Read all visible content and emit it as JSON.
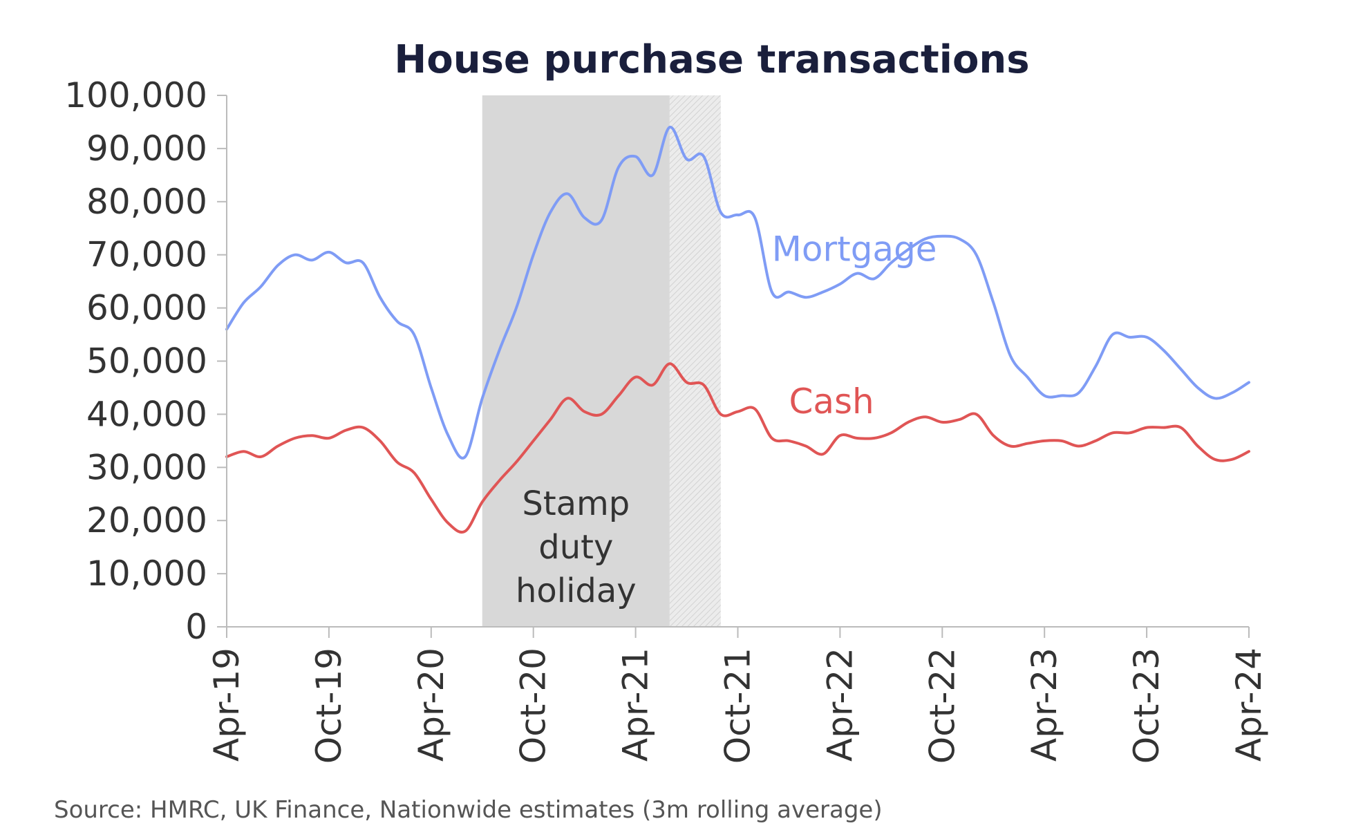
{
  "chart_data": {
    "type": "line",
    "title": "House purchase transactions",
    "source": "Source: HMRC, UK Finance, Nationwide estimates (3m rolling average)",
    "ylim": [
      0,
      100000
    ],
    "yticks": [
      "0",
      "10,000",
      "20,000",
      "30,000",
      "40,000",
      "50,000",
      "60,000",
      "70,000",
      "80,000",
      "90,000",
      "100,000"
    ],
    "ytick_values": [
      0,
      10000,
      20000,
      30000,
      40000,
      50000,
      60000,
      70000,
      80000,
      90000,
      100000
    ],
    "xlim": [
      "2019-04",
      "2024-04"
    ],
    "xticks": [
      "Apr-19",
      "Oct-19",
      "Apr-20",
      "Oct-20",
      "Apr-21",
      "Oct-21",
      "Apr-22",
      "Oct-22",
      "Apr-23",
      "Oct-23",
      "Apr-24"
    ],
    "xtick_dates": [
      "2019-04",
      "2019-10",
      "2020-04",
      "2020-10",
      "2021-04",
      "2021-10",
      "2022-04",
      "2022-10",
      "2023-04",
      "2023-10",
      "2024-04"
    ],
    "grid": false,
    "legend": "none",
    "annotations": {
      "band_label": [
        "Stamp",
        "duty",
        "holiday"
      ],
      "band_main": {
        "start": "2020-07",
        "end": "2021-06"
      },
      "band_taper": {
        "start": "2021-06",
        "end": "2021-09"
      }
    },
    "series": [
      {
        "name": "Mortgage",
        "color": "#7f9cf5",
        "x": [
          "2019-04",
          "2019-05",
          "2019-06",
          "2019-07",
          "2019-08",
          "2019-09",
          "2019-10",
          "2019-11",
          "2019-12",
          "2020-01",
          "2020-02",
          "2020-03",
          "2020-04",
          "2020-05",
          "2020-06",
          "2020-07",
          "2020-08",
          "2020-09",
          "2020-10",
          "2020-11",
          "2020-12",
          "2021-01",
          "2021-02",
          "2021-03",
          "2021-04",
          "2021-05",
          "2021-06",
          "2021-07",
          "2021-08",
          "2021-09",
          "2021-10",
          "2021-11",
          "2021-12",
          "2022-01",
          "2022-02",
          "2022-03",
          "2022-04",
          "2022-05",
          "2022-06",
          "2022-07",
          "2022-08",
          "2022-09",
          "2022-10",
          "2022-11",
          "2022-12",
          "2023-01",
          "2023-02",
          "2023-03",
          "2023-04",
          "2023-05",
          "2023-06",
          "2023-07",
          "2023-08",
          "2023-09",
          "2023-10",
          "2023-11",
          "2023-12",
          "2024-01",
          "2024-02",
          "2024-03",
          "2024-04"
        ],
        "values": [
          56000,
          61000,
          64000,
          68000,
          70000,
          69000,
          70500,
          68500,
          68500,
          62000,
          57500,
          55000,
          45000,
          36000,
          32000,
          43000,
          52000,
          60000,
          70000,
          78000,
          81500,
          77000,
          76500,
          86500,
          88500,
          85000,
          94000,
          88000,
          88500,
          78000,
          77500,
          77000,
          63000,
          63000,
          62000,
          63000,
          64500,
          66500,
          65500,
          68500,
          71000,
          73000,
          73500,
          73000,
          70000,
          61000,
          51000,
          47000,
          43500,
          43500,
          44000,
          49000,
          55000,
          54500,
          54500,
          52000,
          48500,
          45000,
          43000,
          44000,
          46000
        ]
      },
      {
        "name": "Cash",
        "color": "#e05555",
        "x": [
          "2019-04",
          "2019-05",
          "2019-06",
          "2019-07",
          "2019-08",
          "2019-09",
          "2019-10",
          "2019-11",
          "2019-12",
          "2020-01",
          "2020-02",
          "2020-03",
          "2020-04",
          "2020-05",
          "2020-06",
          "2020-07",
          "2020-08",
          "2020-09",
          "2020-10",
          "2020-11",
          "2020-12",
          "2021-01",
          "2021-02",
          "2021-03",
          "2021-04",
          "2021-05",
          "2021-06",
          "2021-07",
          "2021-08",
          "2021-09",
          "2021-10",
          "2021-11",
          "2021-12",
          "2022-01",
          "2022-02",
          "2022-03",
          "2022-04",
          "2022-05",
          "2022-06",
          "2022-07",
          "2022-08",
          "2022-09",
          "2022-10",
          "2022-11",
          "2022-12",
          "2023-01",
          "2023-02",
          "2023-03",
          "2023-04",
          "2023-05",
          "2023-06",
          "2023-07",
          "2023-08",
          "2023-09",
          "2023-10",
          "2023-11",
          "2023-12",
          "2024-01",
          "2024-02",
          "2024-03",
          "2024-04"
        ],
        "values": [
          32000,
          33000,
          32000,
          34000,
          35500,
          36000,
          35500,
          37000,
          37500,
          35000,
          31000,
          29000,
          24000,
          19500,
          18000,
          23500,
          27500,
          31000,
          35000,
          39000,
          43000,
          40500,
          40000,
          43500,
          47000,
          45500,
          49500,
          46000,
          45500,
          40000,
          40500,
          41000,
          35500,
          35000,
          34000,
          32500,
          36000,
          35500,
          35500,
          36500,
          38500,
          39500,
          38500,
          39000,
          40000,
          36000,
          34000,
          34500,
          35000,
          35000,
          34000,
          35000,
          36500,
          36500,
          37500,
          37500,
          37500,
          34000,
          31500,
          31500,
          33000
        ]
      }
    ]
  }
}
